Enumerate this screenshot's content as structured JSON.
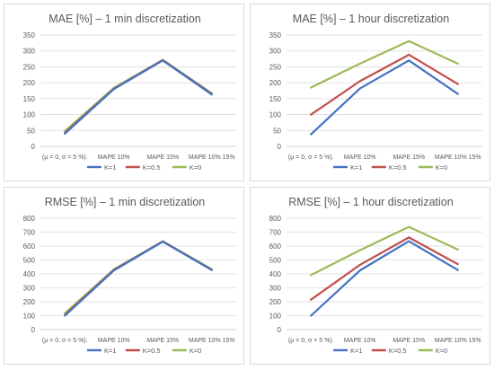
{
  "chart_data": [
    {
      "type": "line",
      "title": "MAE [%] – 1 min discretization",
      "categories": [
        "(μ = 0, σ = 5 %).",
        "MAPE 10%",
        "MAPE 15%",
        "MAPE 10% 15%"
      ],
      "ylim": [
        0,
        350
      ],
      "yticks": [
        0,
        50,
        100,
        150,
        200,
        250,
        300,
        350
      ],
      "grid": true,
      "legend_position": "bottom",
      "series": [
        {
          "name": "K=1",
          "color": "#4472c4",
          "values": [
            40,
            180,
            270,
            163
          ]
        },
        {
          "name": "K=0.5",
          "color": "#c0504d",
          "values": [
            43,
            181,
            271,
            165
          ]
        },
        {
          "name": "K=0",
          "color": "#9bbb59",
          "values": [
            48,
            184,
            272,
            167
          ]
        }
      ]
    },
    {
      "type": "line",
      "title": "MAE [%] –  1 hour discretization",
      "categories": [
        "(μ = 0, σ = 5 %).",
        "MAPE 10%",
        "MAPE 15%",
        "MAPE 10% 15%"
      ],
      "ylim": [
        0,
        350
      ],
      "yticks": [
        0,
        50,
        100,
        150,
        200,
        250,
        300,
        350
      ],
      "grid": true,
      "legend_position": "bottom",
      "series": [
        {
          "name": "K=1",
          "color": "#4472c4",
          "values": [
            38,
            182,
            270,
            165
          ]
        },
        {
          "name": "K=0.5",
          "color": "#c0504d",
          "values": [
            100,
            205,
            288,
            196
          ]
        },
        {
          "name": "K=0",
          "color": "#9bbb59",
          "values": [
            185,
            260,
            331,
            260
          ]
        }
      ]
    },
    {
      "type": "line",
      "title": "RMSE [%] –  1 min discretization",
      "categories": [
        "(μ = 0, σ = 5 %).",
        "MAPE 10%",
        "MAPE 15%",
        "MAPE 10% 15%"
      ],
      "ylim": [
        0,
        800
      ],
      "yticks": [
        0,
        100,
        200,
        300,
        400,
        500,
        600,
        700,
        800
      ],
      "grid": true,
      "legend_position": "bottom",
      "series": [
        {
          "name": "K=1",
          "color": "#4472c4",
          "values": [
            100,
            425,
            632,
            428
          ]
        },
        {
          "name": "K=0.5",
          "color": "#c0504d",
          "values": [
            105,
            428,
            633,
            430
          ]
        },
        {
          "name": "K=0",
          "color": "#9bbb59",
          "values": [
            118,
            433,
            635,
            433
          ]
        }
      ]
    },
    {
      "type": "line",
      "title": "RMSE [%] –  1 hour discretization",
      "categories": [
        "(μ = 0, σ = 5 %).",
        "MAPE 10%",
        "MAPE 15%",
        "MAPE 10% 15%"
      ],
      "ylim": [
        0,
        800
      ],
      "yticks": [
        0,
        100,
        200,
        300,
        400,
        500,
        600,
        700,
        800
      ],
      "grid": true,
      "legend_position": "bottom",
      "series": [
        {
          "name": "K=1",
          "color": "#4472c4",
          "values": [
            100,
            425,
            635,
            428
          ]
        },
        {
          "name": "K=0.5",
          "color": "#c0504d",
          "values": [
            215,
            465,
            662,
            470
          ]
        },
        {
          "name": "K=0",
          "color": "#9bbb59",
          "values": [
            392,
            570,
            738,
            575
          ]
        }
      ]
    }
  ]
}
